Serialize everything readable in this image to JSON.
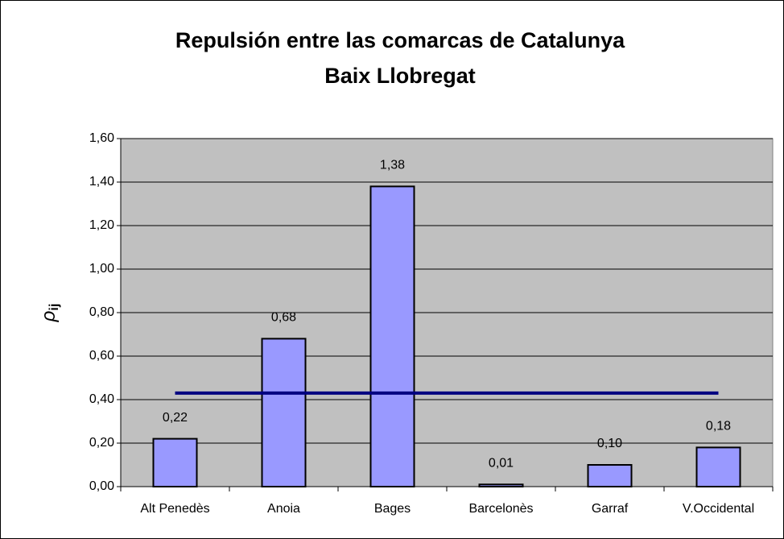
{
  "chart_data": {
    "type": "bar",
    "title": "Repulsión entre las comarcas de Catalunya",
    "subtitle": "Baix Llobregat",
    "y_label": {
      "symbol": "ρ",
      "subscript": "ij"
    },
    "categories": [
      "Alt Penedès",
      "Anoia",
      "Bages",
      "Barcelonès",
      "Garraf",
      "V.Occidental"
    ],
    "series": [
      {
        "type": "bar",
        "color": "#9999ff",
        "values": [
          0.22,
          0.68,
          1.38,
          0.01,
          0.1,
          0.18
        ],
        "value_labels": [
          "0,22",
          "0,68",
          "1,38",
          "0,01",
          "0,10",
          "0,18"
        ]
      },
      {
        "type": "line",
        "color": "#000080",
        "values": [
          0.43,
          0.43,
          0.43,
          0.43,
          0.43,
          0.43
        ]
      }
    ],
    "ylim": [
      0,
      1.6
    ],
    "yticks": [
      {
        "value": 0,
        "label": "0,00"
      },
      {
        "value": 0.2,
        "label": "0,20"
      },
      {
        "value": 0.4,
        "label": "0,40"
      },
      {
        "value": 0.6,
        "label": "0,60"
      },
      {
        "value": 0.8,
        "label": "0,80"
      },
      {
        "value": 1.0,
        "label": "1,00"
      },
      {
        "value": 1.2,
        "label": "1,20"
      },
      {
        "value": 1.4,
        "label": "1,40"
      },
      {
        "value": 1.6,
        "label": "1,60"
      }
    ],
    "grid": true,
    "plot_background": "#c0c0c0"
  }
}
